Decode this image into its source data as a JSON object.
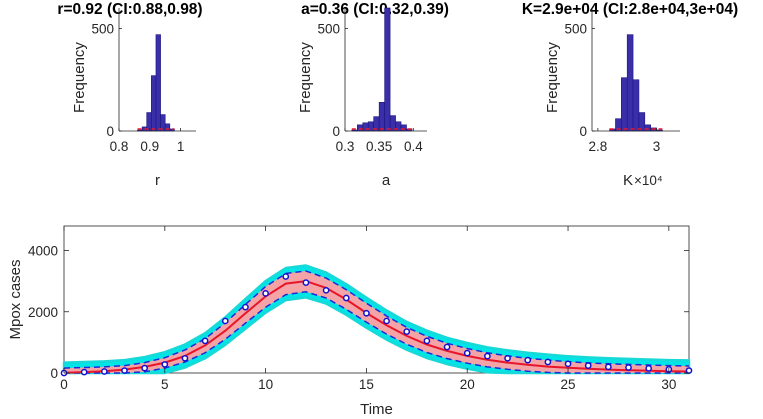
{
  "chart_data": [
    {
      "type": "bar",
      "title": "r=0.92 (CI:0.88,0.98)",
      "xlabel": "r",
      "ylabel": "Frequency",
      "xlim": [
        0.8,
        1.05
      ],
      "ylim": [
        0,
        600
      ],
      "xticks": [
        "0.8",
        "0.9",
        "1"
      ],
      "xtick_values": [
        0.8,
        0.9,
        1.0
      ],
      "yticks": [
        "0",
        "500"
      ],
      "ytick_values": [
        0,
        500
      ],
      "bin_edges": [
        0.86,
        0.875,
        0.89,
        0.905,
        0.92,
        0.935,
        0.95,
        0.965,
        0.98
      ],
      "values": [
        5,
        20,
        90,
        270,
        470,
        80,
        35,
        10
      ],
      "bar_color": "#3a2fa8",
      "ci_line_color": "#e8162a"
    },
    {
      "type": "bar",
      "title": "a=0.36 (CI:0.32,0.39)",
      "xlabel": "a",
      "ylabel": "Frequency",
      "xlim": [
        0.3,
        0.42
      ],
      "ylim": [
        0,
        600
      ],
      "xticks": [
        "0.3",
        "0.35",
        "0.4"
      ],
      "xtick_values": [
        0.3,
        0.35,
        0.4
      ],
      "yticks": [
        "0",
        "500"
      ],
      "ytick_values": [
        0,
        500
      ],
      "bin_edges": [
        0.31,
        0.318,
        0.326,
        0.334,
        0.342,
        0.35,
        0.358,
        0.366,
        0.374,
        0.382,
        0.39,
        0.398
      ],
      "values": [
        5,
        30,
        40,
        45,
        70,
        140,
        620,
        75,
        45,
        30,
        10
      ],
      "bar_color": "#3a2fa8",
      "ci_line_color": "#e8162a"
    },
    {
      "type": "bar",
      "title": "K=2.9e+04 (CI:2.8e+04,3e+04)",
      "xlabel": "K",
      "xlabel_multiplier": "×10⁴",
      "ylabel": "Frequency",
      "xlim": [
        2.78,
        3.08
      ],
      "ylim": [
        0,
        600
      ],
      "xticks": [
        "2.8",
        "3"
      ],
      "xtick_values": [
        2.8,
        3.0
      ],
      "yticks": [
        "0",
        "500"
      ],
      "ytick_values": [
        0,
        500
      ],
      "bin_edges": [
        2.84,
        2.86,
        2.88,
        2.9,
        2.92,
        2.94,
        2.96,
        2.98,
        3.0,
        3.02
      ],
      "values": [
        10,
        60,
        260,
        470,
        250,
        90,
        30,
        15,
        5
      ],
      "bar_color": "#3a2fa8",
      "ci_line_color": "#e8162a"
    },
    {
      "type": "line",
      "xlabel": "Time",
      "ylabel": "Mpox cases",
      "xlim": [
        0,
        31
      ],
      "ylim": [
        0,
        4800
      ],
      "xticks": [
        "0",
        "5",
        "10",
        "15",
        "20",
        "25",
        "30"
      ],
      "xtick_values": [
        0,
        5,
        10,
        15,
        20,
        25,
        30
      ],
      "yticks": [
        "0",
        "2000",
        "4000"
      ],
      "ytick_values": [
        0,
        2000,
        4000
      ],
      "grid": false,
      "x": [
        0,
        1,
        2,
        3,
        4,
        5,
        6,
        7,
        8,
        9,
        10,
        11,
        12,
        13,
        14,
        15,
        16,
        17,
        18,
        19,
        20,
        21,
        22,
        23,
        24,
        25,
        26,
        27,
        28,
        29,
        30,
        31
      ],
      "observed": [
        0,
        30,
        50,
        80,
        160,
        280,
        480,
        1050,
        1700,
        2150,
        2600,
        3150,
        2950,
        2700,
        2450,
        1950,
        1700,
        1350,
        1050,
        850,
        650,
        550,
        480,
        420,
        360,
        300,
        240,
        200,
        180,
        150,
        120,
        80
      ],
      "fit_mean": [
        10,
        30,
        60,
        110,
        200,
        340,
        560,
        900,
        1380,
        1950,
        2500,
        2920,
        3000,
        2780,
        2400,
        1960,
        1560,
        1210,
        930,
        720,
        560,
        430,
        340,
        270,
        210,
        170,
        140,
        110,
        90,
        75,
        60,
        50
      ],
      "ci_lower": [
        0,
        0,
        0,
        0,
        40,
        160,
        360,
        660,
        1100,
        1630,
        2150,
        2560,
        2650,
        2450,
        2080,
        1660,
        1270,
        940,
        670,
        470,
        320,
        200,
        120,
        60,
        20,
        0,
        0,
        0,
        0,
        0,
        0,
        0
      ],
      "ci_upper": [
        160,
        180,
        200,
        240,
        340,
        500,
        750,
        1120,
        1640,
        2240,
        2820,
        3250,
        3330,
        3100,
        2720,
        2280,
        1860,
        1490,
        1200,
        970,
        800,
        660,
        560,
        480,
        420,
        370,
        330,
        300,
        280,
        260,
        240,
        230
      ],
      "colors": {
        "ensemble_band": "#00e5e5",
        "ci_fill": "#f4a3a6",
        "fit_line": "#e8162a",
        "ci_line": "#1e2ad8",
        "observed": "#1010d0"
      }
    }
  ]
}
